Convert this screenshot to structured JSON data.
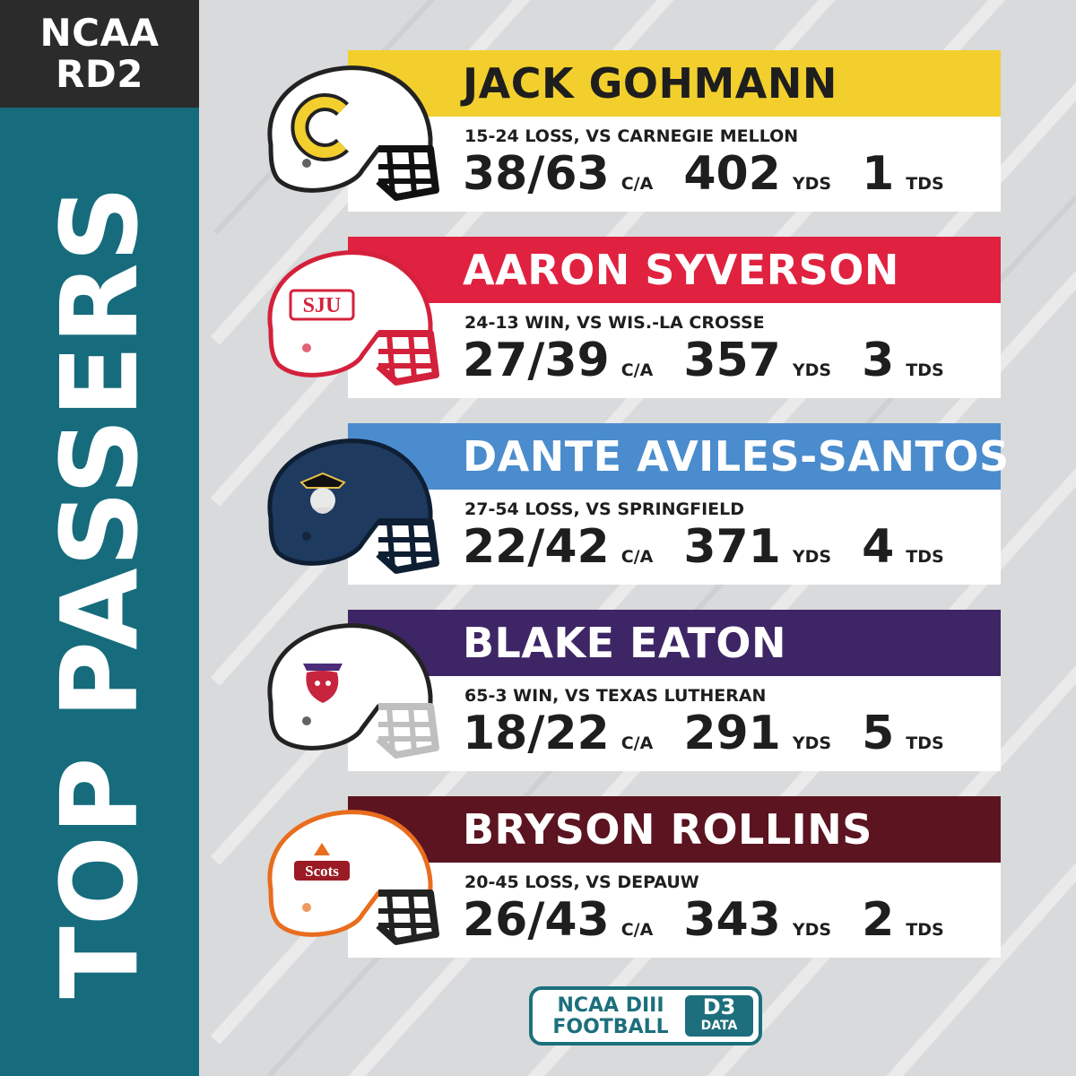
{
  "header": {
    "line1": "NCAA",
    "line2": "RD2"
  },
  "title": "TOP PASSERS",
  "units": {
    "ca": "C/A",
    "yds": "YDS",
    "tds": "TDS"
  },
  "colors": {
    "sidebar": "#166c7c",
    "header_block": "#2b2b2b"
  },
  "players": [
    {
      "name": "JACK GOHMANN",
      "result": "15-24 LOSS, VS CARNEGIE MELLON",
      "ca": "38/63",
      "yds": "402",
      "tds": "1",
      "bar_color": "#f2cf2d",
      "name_color": "#1e1e1e",
      "helmet": "chicago-maroon-c-helmet"
    },
    {
      "name": "AARON SYVERSON",
      "result": "24-13 WIN, VS WIS.-LA CROSSE",
      "ca": "27/39",
      "yds": "357",
      "tds": "3",
      "bar_color": "#e0213f",
      "name_color": "#ffffff",
      "helmet": "sju-helmet"
    },
    {
      "name": "DANTE AVILES-SANTOS",
      "result": "27-54 LOSS, VS SPRINGFIELD",
      "ca": "22/42",
      "yds": "371",
      "tds": "4",
      "bar_color": "#4a8ccd",
      "name_color": "#ffffff",
      "helmet": "pirate-helmet"
    },
    {
      "name": "BLAKE EATON",
      "result": "65-3 WIN, VS TEXAS LUTHERAN",
      "ca": "18/22",
      "yds": "291",
      "tds": "5",
      "bar_color": "#3e2666",
      "name_color": "#ffffff",
      "helmet": "cougar-helmet"
    },
    {
      "name": "BRYSON ROLLINS",
      "result": "20-45 LOSS, VS DEPAUW",
      "ca": "26/43",
      "yds": "343",
      "tds": "2",
      "bar_color": "#5c1420",
      "name_color": "#ffffff",
      "helmet": "scots-helmet"
    }
  ],
  "logo": {
    "line1": "NCAA DIII",
    "line2": "FOOTBALL",
    "badge": "D3",
    "badge_sub": "DATA"
  }
}
